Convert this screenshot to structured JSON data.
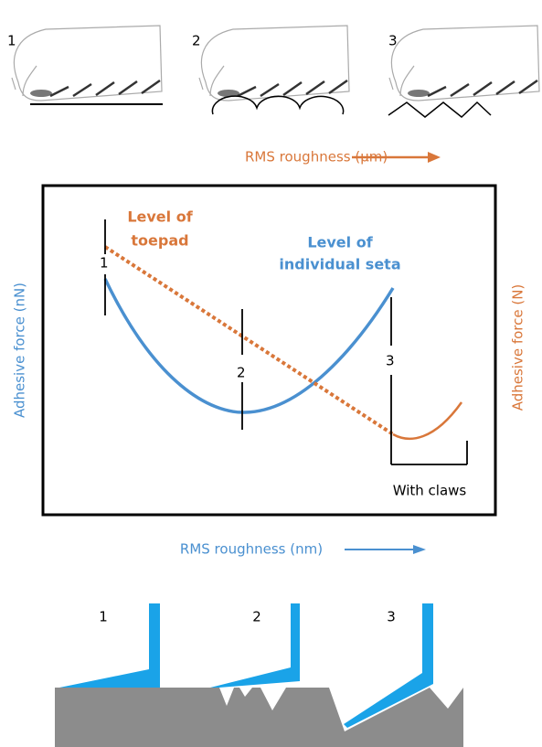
{
  "top_panels": {
    "labels": [
      "1",
      "2",
      "3"
    ],
    "axis_label": "RMS roughness (μm)"
  },
  "graph": {
    "toepad_label": [
      "Level of",
      "toepad"
    ],
    "seta_label": [
      "Level of",
      "individual seta"
    ],
    "markers": [
      "1",
      "2",
      "3"
    ],
    "claws_label": "With claws",
    "left_axis_label": "Adhesive force (nN)",
    "right_axis_label": "Adhesive force (N)",
    "x_axis_label": "RMS roughness (nm)"
  },
  "bottom_panels": {
    "labels": [
      "1",
      "2",
      "3"
    ]
  }
}
